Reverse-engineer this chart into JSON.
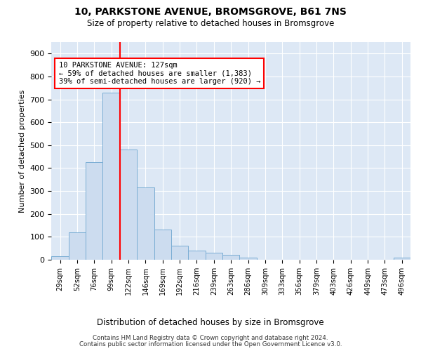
{
  "title": "10, PARKSTONE AVENUE, BROMSGROVE, B61 7NS",
  "subtitle": "Size of property relative to detached houses in Bromsgrove",
  "xlabel": "Distribution of detached houses by size in Bromsgrove",
  "ylabel": "Number of detached properties",
  "bar_color": "#ccdcef",
  "bar_edge_color": "#7aadd4",
  "background_color": "#dde8f5",
  "grid_color": "#ffffff",
  "bin_labels": [
    "29sqm",
    "52sqm",
    "76sqm",
    "99sqm",
    "122sqm",
    "146sqm",
    "169sqm",
    "192sqm",
    "216sqm",
    "239sqm",
    "263sqm",
    "286sqm",
    "309sqm",
    "333sqm",
    "356sqm",
    "379sqm",
    "403sqm",
    "426sqm",
    "449sqm",
    "473sqm",
    "496sqm"
  ],
  "bar_values": [
    15,
    120,
    425,
    730,
    480,
    315,
    130,
    60,
    40,
    30,
    20,
    10,
    0,
    0,
    0,
    0,
    0,
    0,
    0,
    0,
    10
  ],
  "ylim": [
    0,
    950
  ],
  "yticks": [
    0,
    100,
    200,
    300,
    400,
    500,
    600,
    700,
    800,
    900
  ],
  "property_line_x": 3.5,
  "annotation_line1": "10 PARKSTONE AVENUE: 127sqm",
  "annotation_line2": "← 59% of detached houses are smaller (1,383)",
  "annotation_line3": "39% of semi-detached houses are larger (920) →",
  "footer1": "Contains HM Land Registry data © Crown copyright and database right 2024.",
  "footer2": "Contains public sector information licensed under the Open Government Licence v3.0."
}
